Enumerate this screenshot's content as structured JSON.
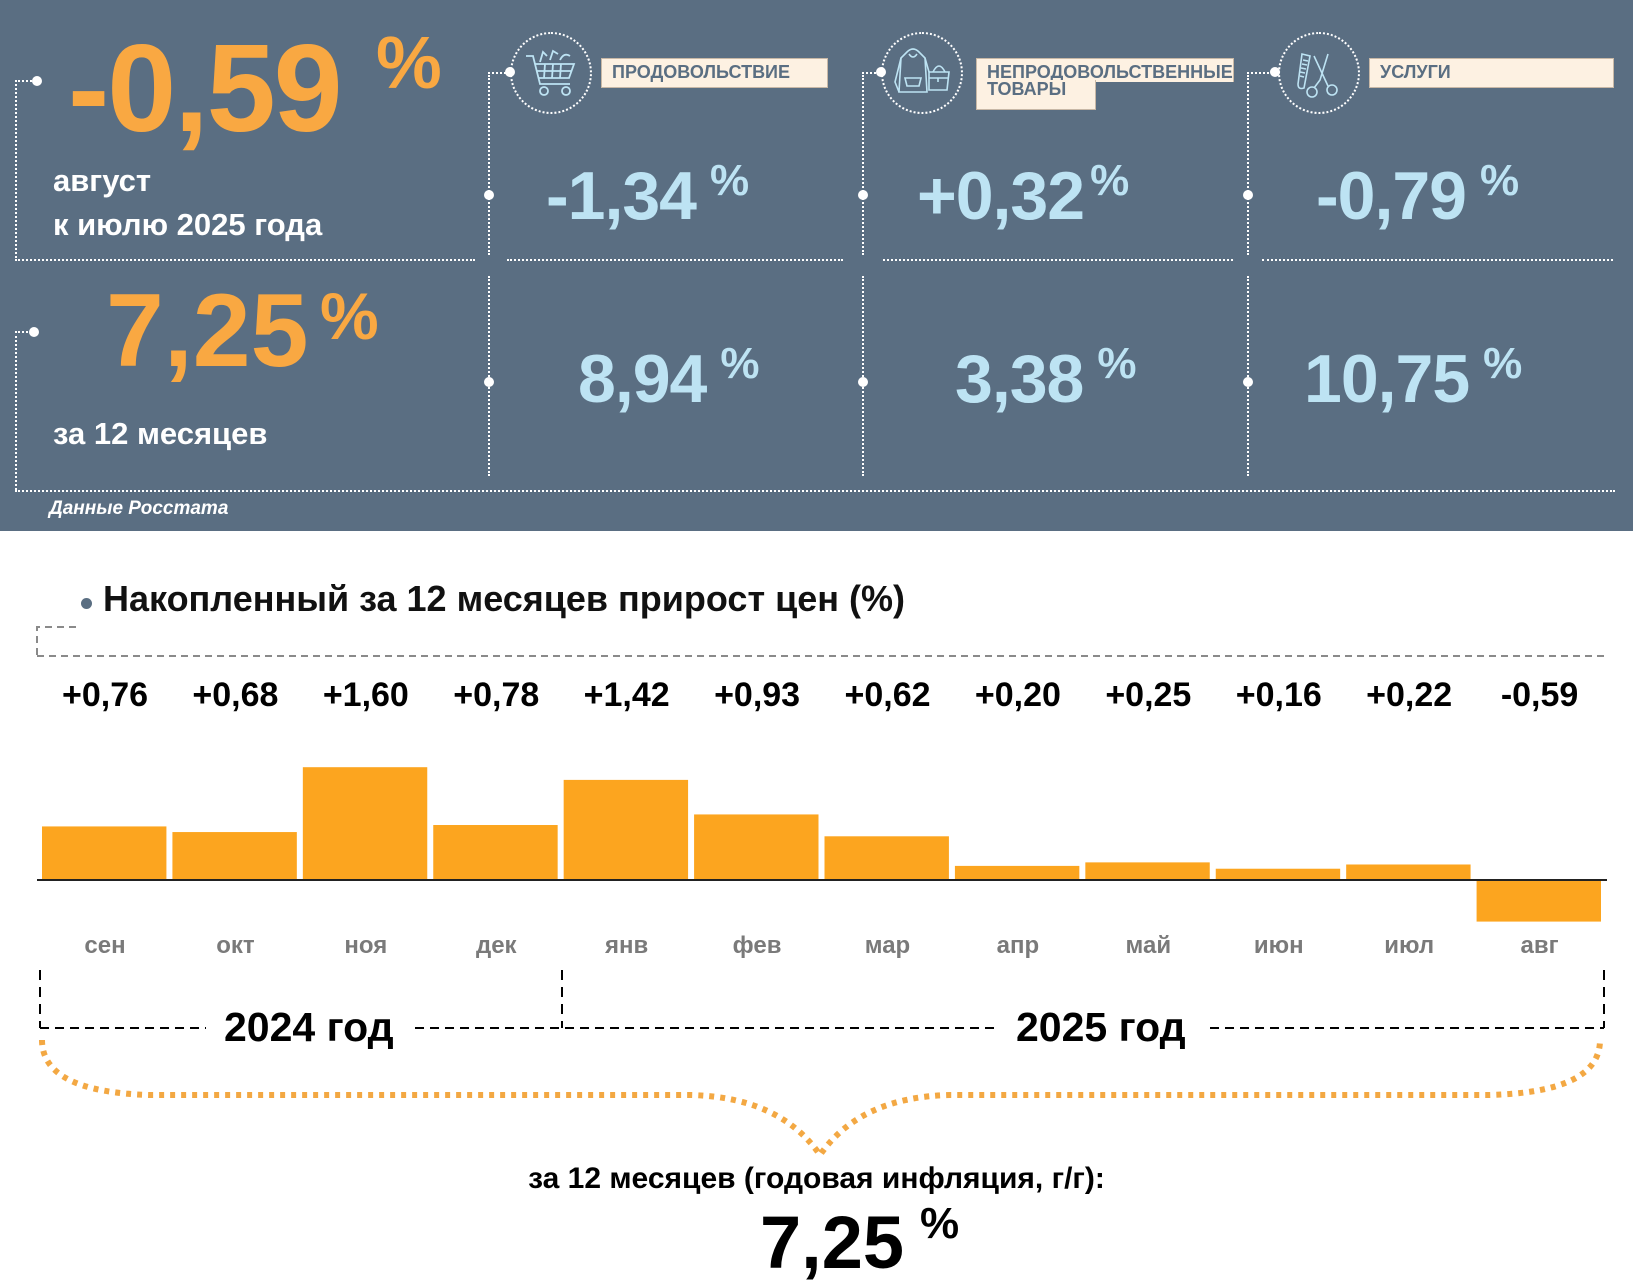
{
  "summary_panel": {
    "monthly": {
      "value": "-0,59",
      "unit": "%",
      "label_line1": "август",
      "label_line2": "к июлю 2025 года"
    },
    "annual": {
      "value": "7,25",
      "unit": "%",
      "label": "за 12 месяцев"
    },
    "categories": [
      {
        "name": "ПРОДОВОЛЬСТВИЕ",
        "icon": "shopping-cart-icon",
        "monthly": "-1,34",
        "annual": "8,94",
        "unit": "%"
      },
      {
        "name_line1": "НЕПРОДОВОЛЬСТВЕННЫЕ",
        "name_line2": "ТОВАРЫ",
        "icon": "hoodie-handbag-icon",
        "monthly": "+0,32",
        "annual": "3,38",
        "unit": "%"
      },
      {
        "name": "УСЛУГИ",
        "icon": "comb-scissors-icon",
        "monthly": "-0,79",
        "annual": "10,75",
        "unit": "%"
      }
    ],
    "source": "Данные Росстата",
    "colors": {
      "background": "#5a6e82",
      "accent_orange": "#f9a842",
      "value_blue": "#bde3f3",
      "label_bg": "#fdf1e2"
    }
  },
  "chart_data": {
    "type": "bar",
    "title": "Накопленный за 12 месяцев прирост цен (%)",
    "categories": [
      "сен",
      "окт",
      "ноя",
      "дек",
      "янв",
      "фев",
      "мар",
      "апр",
      "май",
      "июн",
      "июл",
      "авг"
    ],
    "values": [
      0.76,
      0.68,
      1.6,
      0.78,
      1.42,
      0.93,
      0.62,
      0.2,
      0.25,
      0.16,
      0.22,
      -0.59
    ],
    "value_labels": [
      "+0,76",
      "+0,68",
      "+1,60",
      "+0,78",
      "+1,42",
      "+0,93",
      "+0,62",
      "+0,20",
      "+0,25",
      "+0,16",
      "+0,22",
      "-0,59"
    ],
    "xlabel": "",
    "ylabel": "",
    "grid": false,
    "bar_color": "#fca51f",
    "year_groups": [
      {
        "label": "2024 год",
        "months": [
          "сен",
          "окт",
          "ноя",
          "дек"
        ]
      },
      {
        "label": "2025 год",
        "months": [
          "янв",
          "фев",
          "мар",
          "апр",
          "май",
          "июн",
          "июл",
          "авг"
        ]
      }
    ],
    "summary_label": "за 12 месяцев (годовая инфляция, г/г):",
    "summary_value": "7,25",
    "summary_unit": "%"
  }
}
